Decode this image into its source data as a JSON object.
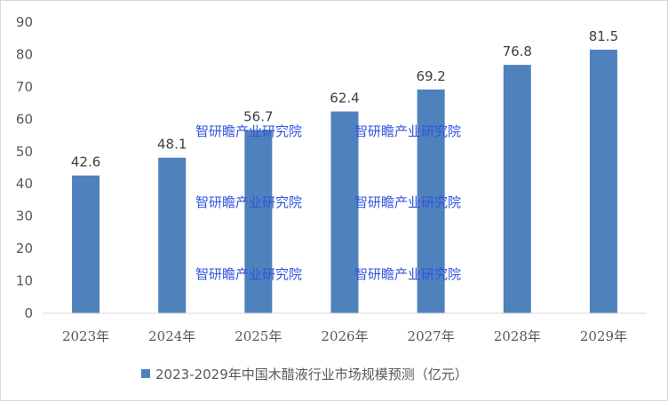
{
  "chart_data": {
    "type": "bar",
    "categories": [
      "2023年",
      "2024年",
      "2025年",
      "2026年",
      "2027年",
      "2028年",
      "2029年"
    ],
    "series": [
      {
        "name": "2023-2029年中国木醋液行业市场规模预测（亿元）",
        "values": [
          42.6,
          48.1,
          56.7,
          62.4,
          69.2,
          76.8,
          81.5
        ],
        "color": "#4f81bd"
      }
    ],
    "ylim": [
      0,
      90
    ],
    "yticks": [
      0,
      10,
      20,
      30,
      40,
      50,
      60,
      70,
      80,
      90
    ],
    "grid": false,
    "legend": "bottom",
    "watermark": "智研瞻产业研究院"
  }
}
